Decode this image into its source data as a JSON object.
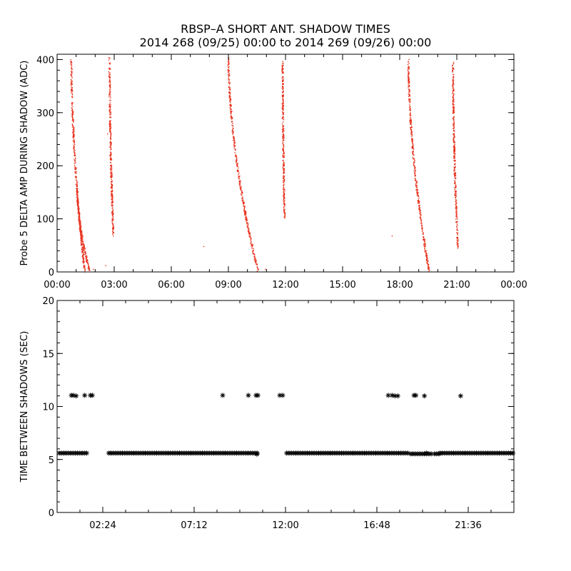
{
  "chart_data": [
    {
      "type": "scatter",
      "title": "RBSP–A SHORT ANT. SHADOW TIMES",
      "subtitle": "2014 268 (09/25) 00:00 to 2014 269 (09/26) 00:00",
      "ylabel": "Probe 5 DELTA AMP DURING SHADOW (ADC)",
      "xlabel": "",
      "xlim_hours": [
        0,
        24
      ],
      "ylim": [
        0,
        410
      ],
      "x_ticks": {
        "values": [
          0,
          3,
          6,
          9,
          12,
          15,
          18,
          21,
          24
        ],
        "labels": [
          "00:00",
          "03:00",
          "06:00",
          "09:00",
          "12:00",
          "15:00",
          "18:00",
          "21:00",
          "00:00"
        ]
      },
      "y_ticks": {
        "values": [
          0,
          100,
          200,
          300,
          400
        ],
        "labels": [
          "0",
          "100",
          "200",
          "300",
          "400"
        ]
      },
      "marker_color": "#e8321e",
      "clusters": [
        {
          "x_start": 0.75,
          "x_end": 1.45,
          "y_top": 400,
          "y_bottom": 0
        },
        {
          "x_start": 1.05,
          "x_end": 1.7,
          "y_top": 160,
          "y_bottom": 2
        },
        {
          "x_start": 2.75,
          "x_end": 2.95,
          "y_top": 405,
          "y_bottom": 70
        },
        {
          "x_start": 9.0,
          "x_end": 10.55,
          "y_top": 405,
          "y_bottom": 2
        },
        {
          "x_start": 11.85,
          "x_end": 11.95,
          "y_top": 395,
          "y_bottom": 100
        },
        {
          "x_start": 18.45,
          "x_end": 19.55,
          "y_top": 400,
          "y_bottom": 0
        },
        {
          "x_start": 20.8,
          "x_end": 21.05,
          "y_top": 395,
          "y_bottom": 45
        }
      ],
      "isolated_points": [
        {
          "x": 1.9,
          "y": 5
        },
        {
          "x": 2.55,
          "y": 12
        },
        {
          "x": 2.65,
          "y": 260
        },
        {
          "x": 7.7,
          "y": 48
        },
        {
          "x": 10.95,
          "y": 5
        },
        {
          "x": 17.6,
          "y": 68
        }
      ]
    },
    {
      "type": "scatter",
      "ylabel": "TIME BETWEEN SHADOWS (SEC)",
      "xlabel": "",
      "xlim_hours": [
        0,
        24
      ],
      "ylim": [
        0,
        20
      ],
      "x_ticks": {
        "values": [
          2.4,
          7.2,
          12.0,
          16.8,
          21.6
        ],
        "labels": [
          "02:24",
          "07:12",
          "12:00",
          "16:48",
          "21:36"
        ]
      },
      "y_ticks": {
        "values": [
          0,
          5,
          10,
          15,
          20
        ],
        "labels": [
          "0",
          "5",
          "10",
          "15",
          "20"
        ]
      },
      "marker": "asterisk",
      "marker_color": "#000000",
      "baseline_value": 5.6,
      "baseline_segments_hours": [
        [
          0,
          1.62
        ],
        [
          2.6,
          10.6
        ],
        [
          11.95,
          18.5
        ],
        [
          20.0,
          24
        ]
      ],
      "baseline_dense_segments_hours": [
        [
          18.5,
          19.7
        ],
        [
          19.75,
          20.1
        ]
      ],
      "high_points": [
        {
          "x": 0.75,
          "y": 11.05
        },
        {
          "x": 0.85,
          "y": 11.05
        },
        {
          "x": 1.0,
          "y": 11.0
        },
        {
          "x": 1.45,
          "y": 11.05
        },
        {
          "x": 1.75,
          "y": 11.05
        },
        {
          "x": 1.85,
          "y": 11.05
        },
        {
          "x": 8.7,
          "y": 11.05
        },
        {
          "x": 10.05,
          "y": 11.05
        },
        {
          "x": 10.45,
          "y": 11.05
        },
        {
          "x": 10.55,
          "y": 11.05
        },
        {
          "x": 11.7,
          "y": 11.05
        },
        {
          "x": 11.85,
          "y": 11.05
        },
        {
          "x": 17.4,
          "y": 11.05
        },
        {
          "x": 17.6,
          "y": 11.05
        },
        {
          "x": 17.75,
          "y": 11.0
        },
        {
          "x": 17.9,
          "y": 11.0
        },
        {
          "x": 18.75,
          "y": 11.05
        },
        {
          "x": 18.85,
          "y": 11.05
        },
        {
          "x": 19.3,
          "y": 11.0
        },
        {
          "x": 21.2,
          "y": 11.0
        }
      ],
      "mid_points": [
        {
          "x": 10.5,
          "y": 5.5
        },
        {
          "x": 19.4,
          "y": 5.6
        }
      ]
    }
  ]
}
